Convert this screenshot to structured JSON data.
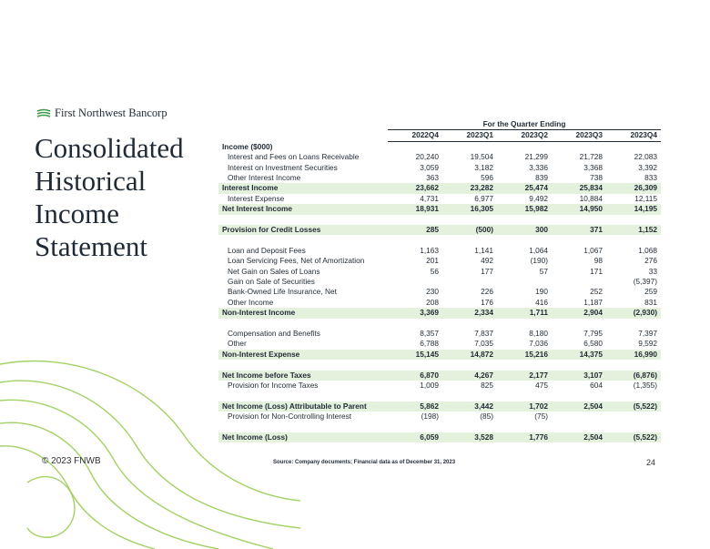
{
  "header": {
    "logo": "First Northwest Bancorp",
    "title": "Consolidated Historical Income Statement"
  },
  "table": {
    "group_header": "For the Quarter Ending",
    "columns": [
      "2022Q4",
      "2023Q1",
      "2023Q2",
      "2023Q3",
      "2023Q4"
    ],
    "rows": [
      {
        "label": "Income ($000)"
      },
      {
        "label": "Interest and Fees on Loans Receivable",
        "values": [
          "20,240",
          "19,504",
          "21,299",
          "21,728",
          "22,083"
        ]
      },
      {
        "label": "Interest on Investment Securities",
        "values": [
          "3,059",
          "3,182",
          "3,336",
          "3,368",
          "3,392"
        ]
      },
      {
        "label": "Other Interest Income",
        "values": [
          "363",
          "596",
          "839",
          "738",
          "833"
        ]
      },
      {
        "label": "Interest Income",
        "values": [
          "23,662",
          "23,282",
          "25,474",
          "25,834",
          "26,309"
        ]
      },
      {
        "label": "Interest Expense",
        "values": [
          "4,731",
          "6,977",
          "9,492",
          "10,884",
          "12,115"
        ]
      },
      {
        "label": "Net Interest Income",
        "values": [
          "18,931",
          "16,305",
          "15,982",
          "14,950",
          "14,195"
        ]
      },
      {
        "label": "Provision for Credit Losses",
        "values": [
          "285",
          "(500)",
          "300",
          "371",
          "1,152"
        ]
      },
      {
        "label": "Loan and Deposit Fees",
        "values": [
          "1,163",
          "1,141",
          "1,064",
          "1,067",
          "1,068"
        ]
      },
      {
        "label": "Loan Servicing Fees, Net of Amortization",
        "values": [
          "201",
          "492",
          "(190)",
          "98",
          "276"
        ]
      },
      {
        "label": "Net Gain on Sales of Loans",
        "values": [
          "56",
          "177",
          "57",
          "171",
          "33"
        ]
      },
      {
        "label": "Gain on Sale of Securities",
        "values": [
          null,
          null,
          null,
          null,
          "(5,397)"
        ]
      },
      {
        "label": "Bank-Owned Life Insurance, Net",
        "values": [
          "230",
          "226",
          "190",
          "252",
          "259"
        ]
      },
      {
        "label": "Other Income",
        "values": [
          "208",
          "176",
          "416",
          "1,187",
          "831"
        ]
      },
      {
        "label": "Non-Interest Income",
        "values": [
          "3,369",
          "2,334",
          "1,711",
          "2,904",
          "(2,930)"
        ]
      },
      {
        "label": "Compensation and Benefits",
        "values": [
          "8,357",
          "7,837",
          "8,180",
          "7,795",
          "7,397"
        ]
      },
      {
        "label": "Other",
        "values": [
          "6,788",
          "7,035",
          "7,036",
          "6,580",
          "9,592"
        ]
      },
      {
        "label": "Non-Interest Expense",
        "values": [
          "15,145",
          "14,872",
          "15,216",
          "14,375",
          "16,990"
        ]
      },
      {
        "label": "Net Income before Taxes",
        "values": [
          "6,870",
          "4,267",
          "2,177",
          "3,107",
          "(6,876)"
        ]
      },
      {
        "label": "Provision for Income Taxes",
        "values": [
          "1,009",
          "825",
          "475",
          "604",
          "(1,355)"
        ]
      },
      {
        "label": "Net Income (Loss) Attributable to Parent",
        "values": [
          "5,862",
          "3,442",
          "1,702",
          "2,504",
          "(5,522)"
        ]
      },
      {
        "label": "Provision for Non-Controlling Interest",
        "values": [
          "(198)",
          "(85)",
          "(75)",
          null,
          null
        ]
      },
      {
        "label": "Net Income (Loss)",
        "values": [
          "6,059",
          "3,528",
          "1,776",
          "2,504",
          "(5,522)"
        ]
      }
    ]
  },
  "footer": {
    "copyright": "© 2023 FNWB",
    "source": "Source: Company documents; Financial data as of December 31, 2023",
    "page": "24"
  }
}
